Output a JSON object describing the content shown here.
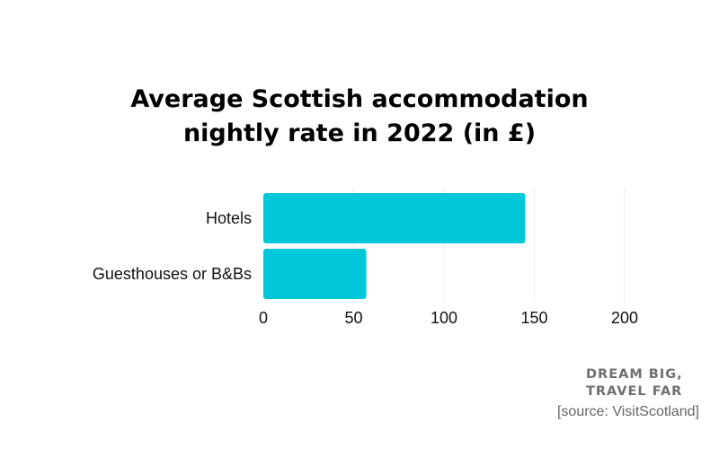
{
  "chart_data": {
    "type": "bar",
    "orientation": "horizontal",
    "title_lines": [
      "Average Scottish accommodation",
      "nightly rate in 2022 (in £)"
    ],
    "categories": [
      "Hotels",
      "Guesthouses or B&Bs"
    ],
    "values": [
      145,
      57
    ],
    "xlim": [
      0,
      200
    ],
    "xticks": [
      "0",
      "50",
      "100",
      "150",
      "200"
    ],
    "xlabel": "",
    "ylabel": "",
    "grid": true,
    "bar_color": "#00c7d9"
  },
  "footer": {
    "brand_lines": [
      "DREAM BIG,",
      "TRAVEL FAR"
    ],
    "source": "[source: VisitScotland]"
  }
}
